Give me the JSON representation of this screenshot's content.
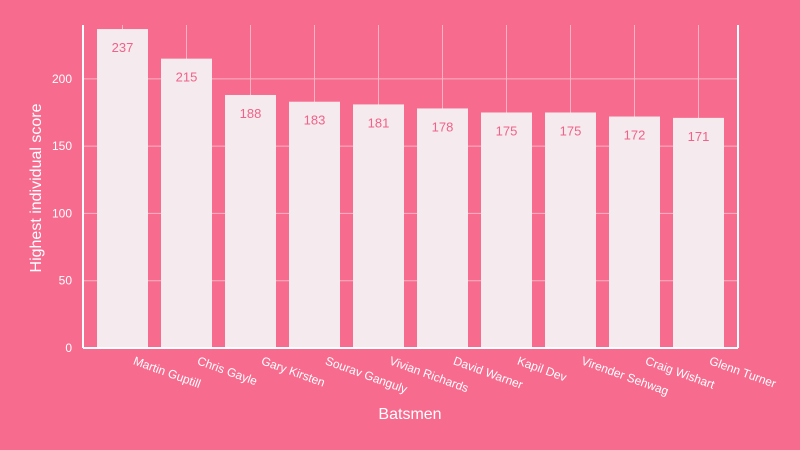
{
  "chart_data": {
    "type": "bar",
    "title": "",
    "xlabel": "Batsmen",
    "ylabel": "Highest individual score",
    "categories": [
      "Martin Guptill",
      "Chris Gayle",
      "Gary Kirsten",
      "Sourav Ganguly",
      "Vivian Richards",
      "David Warner",
      "Kapil Dev",
      "Virender Sehwag",
      "Craig Wishart",
      "Glenn Turner"
    ],
    "values": [
      237,
      215,
      188,
      183,
      181,
      178,
      175,
      175,
      172,
      171
    ],
    "ylim": [
      0,
      240
    ],
    "yticks": [
      0,
      50,
      100,
      150,
      200
    ],
    "grid": true,
    "legend": "none",
    "colors": {
      "background": "#f76b8f",
      "bar": "#f5eaed",
      "data_label": "#f0628a",
      "grid": "#fbb3c4",
      "axis": "#ffffff",
      "text": "#ffffff"
    }
  }
}
